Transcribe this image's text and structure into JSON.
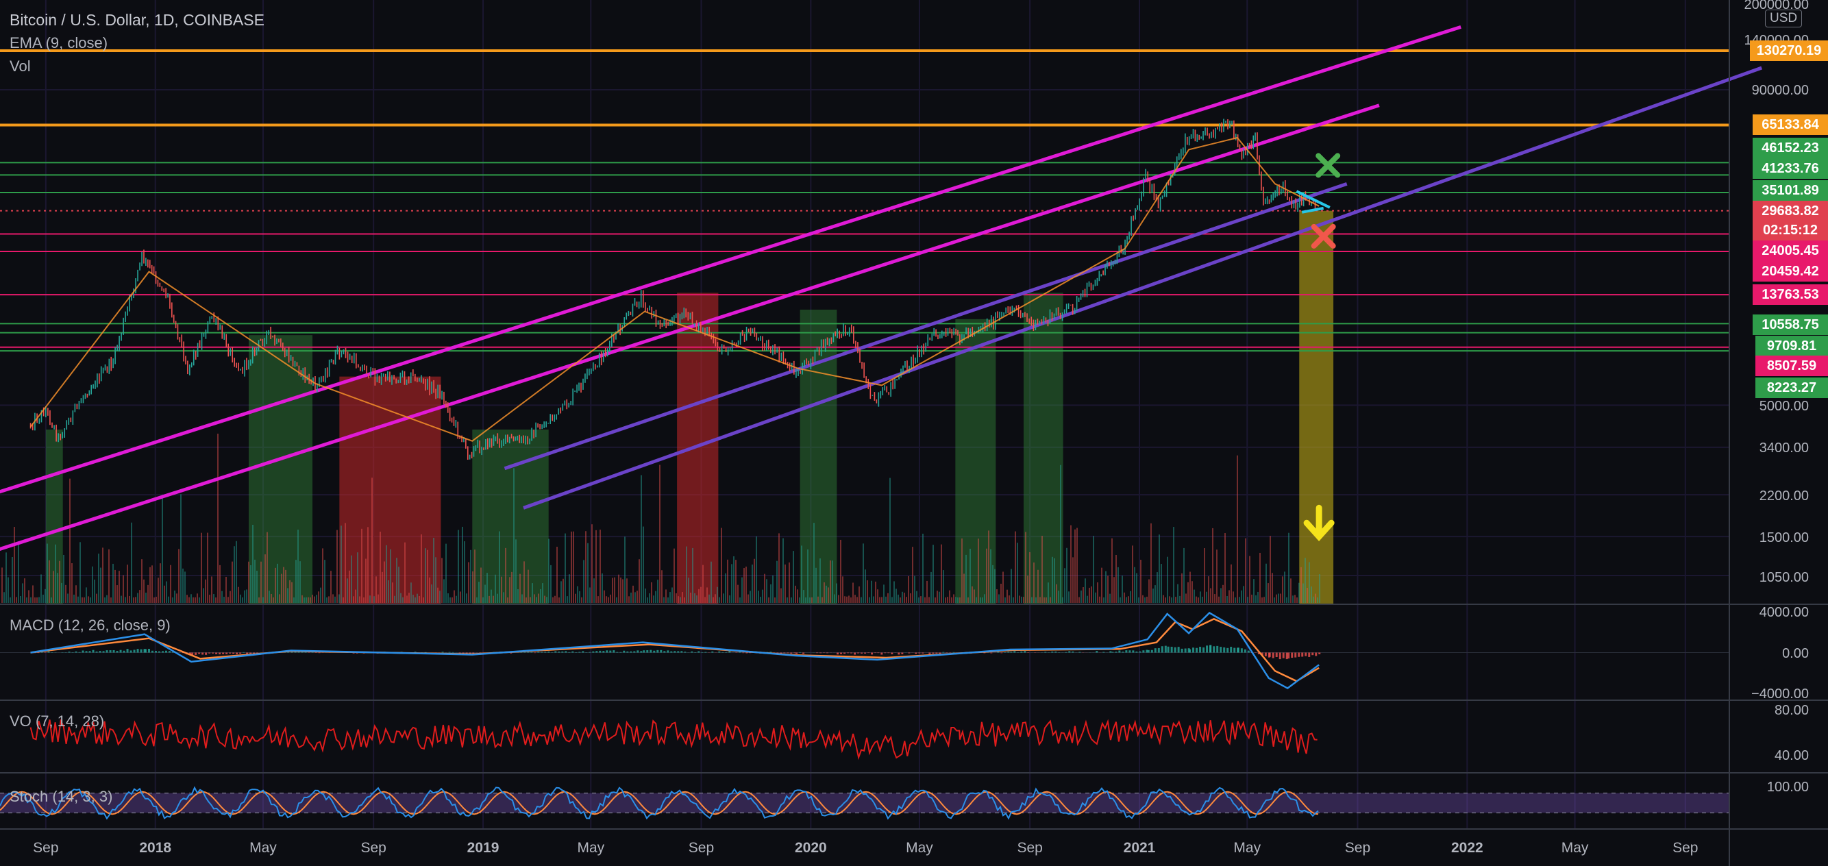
{
  "header": {
    "title": "Bitcoin / U.S. Dollar, 1D, COINBASE",
    "ema_label": "EMA (9, close)",
    "vol_label": "Vol",
    "currency": "USD"
  },
  "panes": {
    "macd_label": "MACD (12, 26, close, 9)",
    "vo_label": "VO (7, 14, 28)",
    "stoch_label": "Stoch (14, 3, 3)"
  },
  "price_tags": [
    {
      "label": "130270.19",
      "color": "#f59a1b"
    },
    {
      "label": "65133.84",
      "color": "#f59a1b"
    },
    {
      "label": "46152.23",
      "color": "#2e9d4a"
    },
    {
      "label": "41233.76",
      "color": "#2e9d4a"
    },
    {
      "label": "35101.89",
      "color": "#2e9d4a"
    },
    {
      "label": "29683.82",
      "color": "#e0404f"
    },
    {
      "label": "02:15:12",
      "color": "#e0404f"
    },
    {
      "label": "24005.45",
      "color": "#e8196b"
    },
    {
      "label": "20459.42",
      "color": "#e8196b"
    },
    {
      "label": "13763.53",
      "color": "#e8196b"
    },
    {
      "label": "10558.75",
      "color": "#2e9d4a"
    },
    {
      "label": "9709.81",
      "color": "#2e9d4a"
    },
    {
      "label": "8507.59",
      "color": "#e8196b"
    },
    {
      "label": "8223.27",
      "color": "#2e9d4a"
    }
  ],
  "chart_data": [
    {
      "type": "line",
      "title": "Bitcoin / U.S. Dollar, 1D, COINBASE",
      "scale": "log",
      "y_ticks": [
        "200000.00",
        "140000.00",
        "90000.00",
        "5000.00",
        "3400.00",
        "2200.00",
        "1500.00",
        "1050.00"
      ],
      "x_ticks": [
        "Sep",
        "2018",
        "May",
        "Sep",
        "2019",
        "May",
        "Sep",
        "2020",
        "May",
        "Sep",
        "2021",
        "May",
        "Sep",
        "2022",
        "May",
        "Sep"
      ],
      "series": [
        {
          "name": "BTCUSD",
          "x": [
            "2017-08-15",
            "2017-09-01",
            "2017-09-15",
            "2017-10-15",
            "2017-11-15",
            "2017-12-17",
            "2018-01-15",
            "2018-02-06",
            "2018-03-05",
            "2018-04-06",
            "2018-05-05",
            "2018-06-28",
            "2018-07-25",
            "2018-09-05",
            "2018-10-15",
            "2018-11-14",
            "2018-12-15",
            "2019-01-15",
            "2019-02-15",
            "2019-04-02",
            "2019-05-15",
            "2019-06-26",
            "2019-07-15",
            "2019-08-15",
            "2019-09-24",
            "2019-10-26",
            "2019-11-15",
            "2019-12-18",
            "2020-01-15",
            "2020-02-13",
            "2020-03-12",
            "2020-04-15",
            "2020-05-15",
            "2020-06-15",
            "2020-07-27",
            "2020-08-17",
            "2020-09-05",
            "2020-10-21",
            "2020-11-15",
            "2020-12-16",
            "2021-01-08",
            "2021-01-22",
            "2021-02-21",
            "2021-03-13",
            "2021-04-14",
            "2021-04-25",
            "2021-05-10",
            "2021-05-19",
            "2021-06-10",
            "2021-06-22",
            "2021-07-05",
            "2021-07-20"
          ],
          "values": [
            4200,
            4800,
            3700,
            5600,
            7500,
            19500,
            13500,
            7000,
            11300,
            6800,
            9700,
            5900,
            8200,
            6400,
            6500,
            5600,
            3250,
            3650,
            3600,
            4900,
            8000,
            13500,
            10500,
            11500,
            8300,
            9800,
            8500,
            6650,
            8700,
            10300,
            5000,
            7000,
            9500,
            9400,
            11000,
            12300,
            10300,
            12500,
            16000,
            22000,
            40500,
            30500,
            57000,
            61000,
            64500,
            48000,
            58000,
            32000,
            37000,
            31000,
            34500,
            29700
          ]
        },
        {
          "name": "EMA (9, close)",
          "x": [
            "2017-08-15",
            "2017-12-25",
            "2018-06-28",
            "2018-12-20",
            "2019-06-30",
            "2019-12-18",
            "2020-03-20",
            "2020-08-17",
            "2020-12-16",
            "2021-02-25",
            "2021-04-20",
            "2021-06-01",
            "2021-07-20"
          ],
          "values": [
            4100,
            17000,
            6100,
            3600,
            11800,
            7000,
            6000,
            12000,
            21000,
            52000,
            58000,
            38000,
            31000
          ]
        }
      ],
      "levels": [
        {
          "value": 130270.19,
          "color": "#f59a1b"
        },
        {
          "value": 65133.84,
          "color": "#f59a1b"
        },
        {
          "value": 46152.23,
          "color": "#2e9d4a"
        },
        {
          "value": 41233.76,
          "color": "#2e9d4a"
        },
        {
          "value": 35101.89,
          "color": "#2e9d4a"
        },
        {
          "value": 29683.82,
          "color": "#e0404f"
        },
        {
          "value": 24005.45,
          "color": "#e8196b"
        },
        {
          "value": 20459.42,
          "color": "#e8196b"
        },
        {
          "value": 13763.53,
          "color": "#e8196b"
        },
        {
          "value": 10558.75,
          "color": "#2e9d4a"
        },
        {
          "value": 9709.81,
          "color": "#2e9d4a"
        },
        {
          "value": 8507.59,
          "color": "#e8196b"
        },
        {
          "value": 8223.27,
          "color": "#2e9d4a"
        }
      ],
      "zones": [
        {
          "start": "2017-09-01",
          "end": "2017-09-20",
          "top_value": 4000,
          "color": "green"
        },
        {
          "start": "2018-04-15",
          "end": "2018-06-25",
          "top_value": 9500,
          "color": "green"
        },
        {
          "start": "2018-07-25",
          "end": "2018-11-15",
          "top_value": 6500,
          "color": "red"
        },
        {
          "start": "2018-12-20",
          "end": "2019-03-15",
          "top_value": 4000,
          "color": "green"
        },
        {
          "start": "2019-08-05",
          "end": "2019-09-20",
          "top_value": 14000,
          "color": "red"
        },
        {
          "start": "2019-12-20",
          "end": "2020-01-30",
          "top_value": 12000,
          "color": "green"
        },
        {
          "start": "2020-06-10",
          "end": "2020-07-25",
          "top_value": 11000,
          "color": "green"
        },
        {
          "start": "2020-08-25",
          "end": "2020-10-08",
          "top_value": 14000,
          "color": "green"
        },
        {
          "start": "2021-06-28",
          "end": "2021-08-05",
          "top_value": 29683.82,
          "color": "yellow"
        }
      ],
      "trendlines": [
        {
          "color": "#e01bd6",
          "from": {
            "x": "2017-07-01",
            "y": 2200
          },
          "to": {
            "x": "2021-12-25",
            "y": 160000
          }
        },
        {
          "color": "#e01bd6",
          "from": {
            "x": "2017-07-01",
            "y": 1300
          },
          "to": {
            "x": "2021-09-25",
            "y": 78000
          }
        },
        {
          "color": "#6b43c9",
          "from": {
            "x": "2019-01-25",
            "y": 2800
          },
          "to": {
            "x": "2021-08-20",
            "y": 38000
          }
        },
        {
          "color": "#6b43c9",
          "from": {
            "x": "2019-02-15",
            "y": 1950
          },
          "to": {
            "x": "2022-11-25",
            "y": 110000
          }
        }
      ],
      "markers": [
        {
          "type": "check-x",
          "color": "#4caf50",
          "x": "2021-07-30",
          "y": 45000
        },
        {
          "type": "cross-x",
          "color": "#f2574b",
          "x": "2021-07-25",
          "y": 23500
        },
        {
          "type": "down-arrow",
          "color": "#f5e31b",
          "x": "2021-07-20",
          "y": 1700
        }
      ]
    },
    {
      "type": "line",
      "title": "MACD (12, 26, close, 9)",
      "y_ticks": [
        "4000.00",
        "0.00",
        "−4000.00"
      ],
      "series": [
        {
          "name": "MACD",
          "x": [
            "2017-08-15",
            "2017-12-20",
            "2018-02-10",
            "2018-06-01",
            "2018-12-20",
            "2019-06-28",
            "2019-12-15",
            "2020-03-15",
            "2020-08-10",
            "2020-12-01",
            "2021-01-10",
            "2021-02-01",
            "2021-02-25",
            "2021-03-20",
            "2021-04-20",
            "2021-05-25",
            "2021-06-15",
            "2021-07-20"
          ],
          "values": [
            0,
            1800,
            -900,
            200,
            -200,
            1000,
            -300,
            -700,
            300,
            400,
            1300,
            3800,
            1900,
            3900,
            2300,
            -2500,
            -3500,
            -1200
          ]
        },
        {
          "name": "Signal",
          "x": [
            "2017-08-15",
            "2017-12-25",
            "2018-02-20",
            "2018-06-01",
            "2018-12-20",
            "2019-07-05",
            "2019-12-15",
            "2020-03-25",
            "2020-08-15",
            "2020-12-10",
            "2021-01-20",
            "2021-02-10",
            "2021-03-01",
            "2021-03-25",
            "2021-04-25",
            "2021-06-01",
            "2021-06-25",
            "2021-07-20"
          ],
          "values": [
            0,
            1400,
            -600,
            150,
            -150,
            800,
            -250,
            -500,
            250,
            350,
            1000,
            3000,
            2300,
            3300,
            2100,
            -1800,
            -2800,
            -1500
          ]
        }
      ]
    },
    {
      "type": "line",
      "title": "VO (7, 14, 28)",
      "y_ticks": [
        "80.00",
        "40.00"
      ],
      "series": [
        {
          "name": "VO",
          "x": [
            "2017-08-15",
            "2017-12-15",
            "2018-06-15",
            "2018-12-15",
            "2019-06-15",
            "2019-12-15",
            "2020-03-15",
            "2020-06-15",
            "2020-12-15",
            "2021-03-15",
            "2021-05-15",
            "2021-07-20"
          ],
          "values": [
            62,
            58,
            55,
            57,
            60,
            56,
            45,
            58,
            60,
            62,
            60,
            48
          ]
        }
      ]
    },
    {
      "type": "line",
      "title": "Stoch (14, 3, 3)",
      "y_ticks": [
        "100.00"
      ],
      "series": [
        {
          "name": "%K",
          "x": [
            "2017-08-15",
            "2018-01-15",
            "2018-06-15",
            "2018-12-15",
            "2019-06-15",
            "2019-12-15",
            "2020-06-15",
            "2020-12-15",
            "2021-06-15",
            "2021-07-20"
          ],
          "values": [
            50,
            60,
            40,
            55,
            65,
            45,
            50,
            70,
            45,
            20
          ]
        }
      ]
    }
  ]
}
